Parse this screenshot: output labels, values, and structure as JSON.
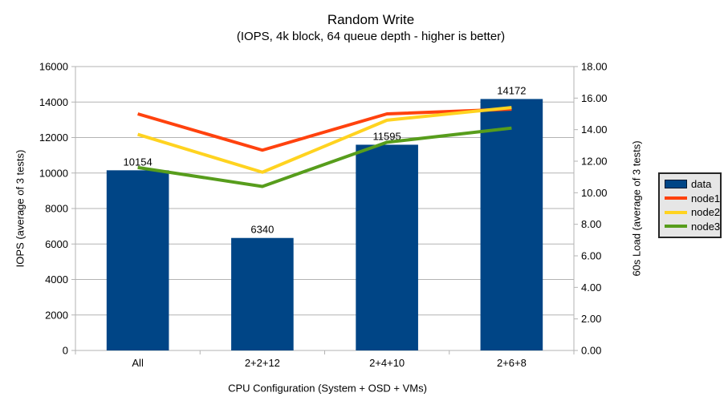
{
  "title": {
    "line1": "Random Write",
    "line2": "(IOPS, 4k block, 64 queue depth - higher is better)"
  },
  "chart_data": {
    "type": "bar+line combo",
    "categories": [
      "All",
      "2+2+12",
      "2+4+10",
      "2+6+8"
    ],
    "bar_series": {
      "name": "data",
      "axis": "left",
      "color": "#004586",
      "values": [
        10154,
        6340,
        11595,
        14172
      ],
      "data_labels": [
        "10154",
        "6340",
        "11595",
        "14172"
      ]
    },
    "line_series": [
      {
        "name": "node1",
        "axis": "right",
        "color": "#ff420e",
        "values": [
          15.0,
          12.7,
          15.0,
          15.3
        ]
      },
      {
        "name": "node2",
        "axis": "right",
        "color": "#ffd320",
        "values": [
          13.7,
          11.3,
          14.6,
          15.4
        ]
      },
      {
        "name": "node3",
        "axis": "right",
        "color": "#579d1c",
        "values": [
          11.6,
          10.4,
          13.2,
          14.1
        ]
      }
    ],
    "axes": {
      "left": {
        "title": "IOPS (average of 3 tests)",
        "min": 0,
        "max": 16000,
        "step": 2000,
        "tick_labels": [
          "0",
          "2000",
          "4000",
          "6000",
          "8000",
          "10000",
          "12000",
          "14000",
          "16000"
        ]
      },
      "right": {
        "title": "60s Load (average of 3 tests)",
        "min": 0,
        "max": 18,
        "step": 2,
        "tick_labels": [
          "0.00",
          "2.00",
          "4.00",
          "6.00",
          "8.00",
          "10.00",
          "12.00",
          "14.00",
          "16.00",
          "18.00"
        ]
      },
      "x": {
        "title": "CPU Configuration (System + OSD + VMs)"
      }
    },
    "grid": {
      "horizontal": true,
      "vertical": false,
      "color": "#b3b3b3"
    },
    "legend": {
      "position": "right",
      "entries": [
        "data",
        "node1",
        "node2",
        "node3"
      ]
    }
  }
}
